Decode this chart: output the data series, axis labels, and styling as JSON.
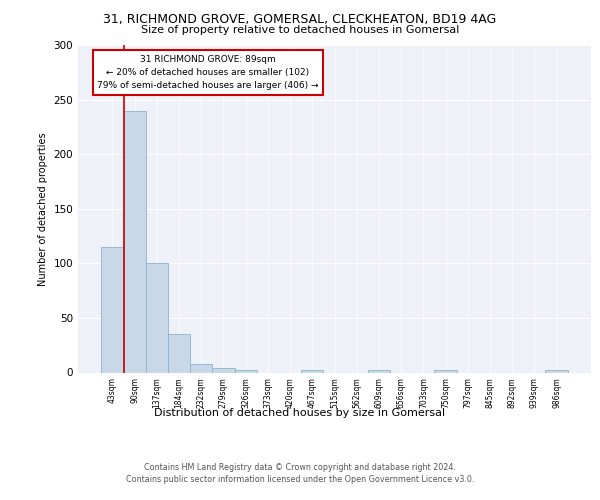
{
  "title1": "31, RICHMOND GROVE, GOMERSAL, CLECKHEATON, BD19 4AG",
  "title2": "Size of property relative to detached houses in Gomersal",
  "xlabel": "Distribution of detached houses by size in Gomersal",
  "ylabel": "Number of detached properties",
  "footnote1": "Contains HM Land Registry data © Crown copyright and database right 2024.",
  "footnote2": "Contains public sector information licensed under the Open Government Licence v3.0.",
  "annotation_line1": "31 RICHMOND GROVE: 89sqm",
  "annotation_line2": "← 20% of detached houses are smaller (102)",
  "annotation_line3": "79% of semi-detached houses are larger (406) →",
  "bar_labels": [
    "43sqm",
    "90sqm",
    "137sqm",
    "184sqm",
    "232sqm",
    "279sqm",
    "326sqm",
    "373sqm",
    "420sqm",
    "467sqm",
    "515sqm",
    "562sqm",
    "609sqm",
    "656sqm",
    "703sqm",
    "750sqm",
    "797sqm",
    "845sqm",
    "892sqm",
    "939sqm",
    "986sqm"
  ],
  "bar_values": [
    115,
    240,
    100,
    35,
    8,
    4,
    2,
    0,
    0,
    2,
    0,
    0,
    2,
    0,
    0,
    2,
    0,
    0,
    0,
    0,
    2
  ],
  "bar_color": "#c8d8e8",
  "bar_edge_color": "#8ab4cc",
  "property_line_color": "#cc0000",
  "annotation_box_color": "#cc0000",
  "ylim": [
    0,
    300
  ],
  "yticks": [
    0,
    50,
    100,
    150,
    200,
    250,
    300
  ],
  "background_color": "#eef2f8"
}
